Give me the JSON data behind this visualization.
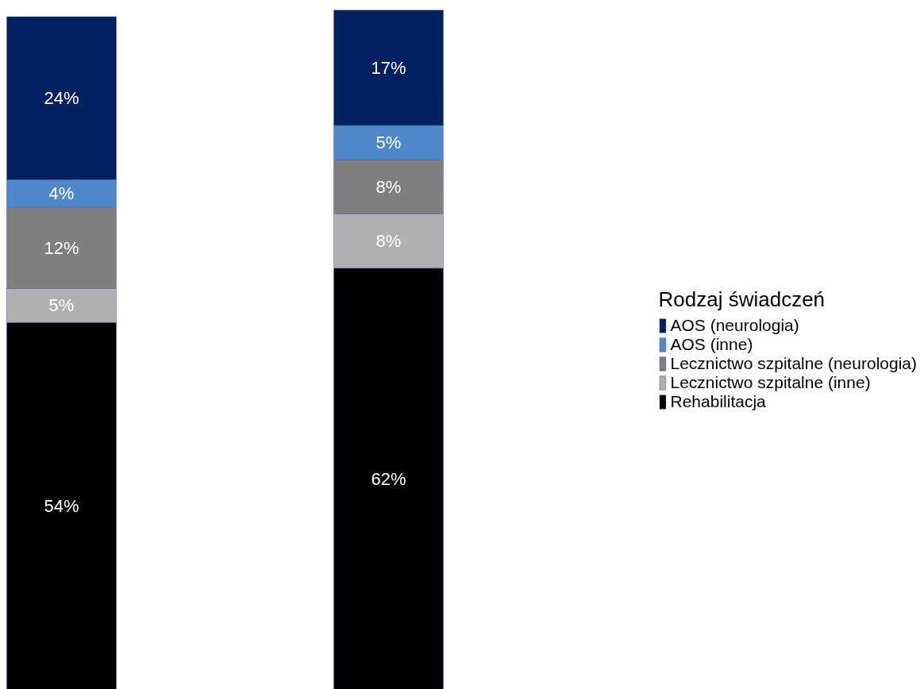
{
  "chart_data": {
    "type": "bar",
    "stacked": true,
    "categories": [
      null,
      null
    ],
    "legend": "right",
    "legend_title": "Rodzaj świadczeń",
    "ylim": [
      0,
      100
    ],
    "tick_labels": false,
    "series": [
      {
        "name": "Rehabilitacja",
        "color": "#000000",
        "values": [
          54,
          62
        ],
        "value_labels": [
          "54%",
          "62%"
        ]
      },
      {
        "name": "Lecznictwo szpitalne (inne)",
        "color": "#b0b0b0",
        "values": [
          5,
          8
        ],
        "value_labels": [
          "5%",
          "8%"
        ]
      },
      {
        "name": "Lecznictwo szpitalne (neurologia)",
        "color": "#7f7f7f",
        "values": [
          12,
          8
        ],
        "value_labels": [
          "12%",
          "8%"
        ]
      },
      {
        "name": "AOS (inne)",
        "color": "#5088cc",
        "values": [
          4,
          5
        ],
        "value_labels": [
          "4%",
          "5%"
        ]
      },
      {
        "name": "AOS (neurologia)",
        "color": "#002060",
        "values": [
          24,
          17
        ],
        "value_labels": [
          "24%",
          "17%"
        ]
      }
    ]
  }
}
